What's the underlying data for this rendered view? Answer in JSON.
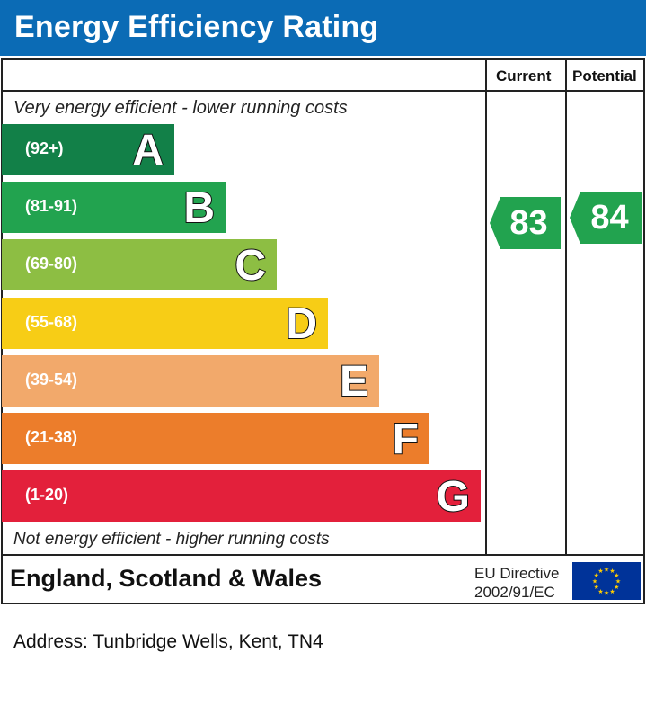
{
  "header": {
    "title": "Energy Efficiency Rating"
  },
  "columns": {
    "current": "Current",
    "potential": "Potential"
  },
  "notes": {
    "top": "Very energy efficient - lower running costs",
    "bottom": "Not energy efficient - higher running costs"
  },
  "bands": [
    {
      "letter": "A",
      "range": "(92+)",
      "color": "#128048"
    },
    {
      "letter": "B",
      "range": "(81-91)",
      "color": "#22a34f"
    },
    {
      "letter": "C",
      "range": "(69-80)",
      "color": "#8dbe43"
    },
    {
      "letter": "D",
      "range": "(55-68)",
      "color": "#f7cd16"
    },
    {
      "letter": "E",
      "range": "(39-54)",
      "color": "#f2a96b"
    },
    {
      "letter": "F",
      "range": "(21-38)",
      "color": "#ec7d2b"
    },
    {
      "letter": "G",
      "range": "(1-20)",
      "color": "#e3203b"
    }
  ],
  "ratings": {
    "current": {
      "value": "83",
      "band": "B",
      "color": "#22a34f"
    },
    "potential": {
      "value": "84",
      "band": "B",
      "color": "#22a34f"
    }
  },
  "footer": {
    "region": "England, Scotland & Wales",
    "directive_line1": "EU Directive",
    "directive_line2": "2002/91/EC",
    "flag_icon": "eu-flag-icon"
  },
  "address": "Address: Tunbridge Wells, Kent, TN4"
}
